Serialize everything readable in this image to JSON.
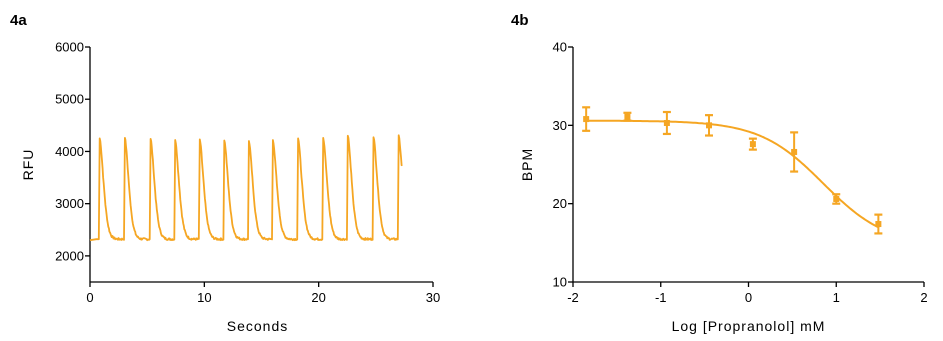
{
  "figure": {
    "panel_a_label": "4a",
    "panel_b_label": "4b",
    "series_color": "#F5A623",
    "axis_color": "#000000"
  },
  "chart_data": [
    {
      "type": "line",
      "panel": "4a",
      "title": "",
      "xlabel": "Seconds",
      "ylabel": "RFU",
      "xlim": [
        0,
        30
      ],
      "ylim": [
        1500,
        6000
      ],
      "xticks": [
        0,
        10,
        20,
        30
      ],
      "xtick_labels": [
        "0",
        "10",
        "20",
        "30"
      ],
      "yticks": [
        2000,
        3000,
        4000,
        5000,
        6000
      ],
      "ytick_labels": [
        "2000",
        "3000",
        "4000",
        "5000",
        "6000"
      ],
      "grid": false,
      "legend": "none",
      "baseline": 2320,
      "peak_times": [
        0.85,
        3.05,
        5.3,
        7.45,
        9.6,
        11.75,
        13.9,
        16.0,
        18.2,
        20.4,
        22.55,
        24.8,
        27.0
      ],
      "peak_values": [
        4250,
        4260,
        4240,
        4220,
        4230,
        4210,
        4200,
        4220,
        4250,
        4260,
        4300,
        4270,
        4310
      ],
      "trace_end": [
        27.3,
        3750
      ],
      "grid_lines": false
    },
    {
      "type": "scatter",
      "panel": "4b",
      "title": "",
      "xlabel": "Log [Propranolol] mM",
      "ylabel": "BPM",
      "xlim": [
        -2,
        2
      ],
      "ylim": [
        10,
        40
      ],
      "xticks": [
        -2,
        -1,
        0,
        1,
        2
      ],
      "xtick_labels": [
        "-2",
        "-1",
        "0",
        "1",
        "2"
      ],
      "yticks": [
        10,
        20,
        30,
        40
      ],
      "ytick_labels": [
        "10",
        "20",
        "30",
        "40"
      ],
      "grid": false,
      "legend": "none",
      "points": [
        {
          "x": -1.85,
          "y": 30.8,
          "err": 1.5
        },
        {
          "x": -1.38,
          "y": 31.1,
          "err": 0.5
        },
        {
          "x": -0.93,
          "y": 30.3,
          "err": 1.4
        },
        {
          "x": -0.45,
          "y": 30.0,
          "err": 1.3
        },
        {
          "x": 0.05,
          "y": 27.6,
          "err": 0.7
        },
        {
          "x": 0.52,
          "y": 26.6,
          "err": 2.5
        },
        {
          "x": 1.0,
          "y": 20.6,
          "err": 0.6
        },
        {
          "x": 1.48,
          "y": 17.4,
          "err": 1.2
        }
      ],
      "fit_curve": {
        "model": "sigmoidal dose-response",
        "top": 30.6,
        "bottom": 14.6,
        "logEC50": 0.85,
        "hill": 1.2,
        "x_range": [
          -1.85,
          1.5
        ]
      }
    }
  ]
}
